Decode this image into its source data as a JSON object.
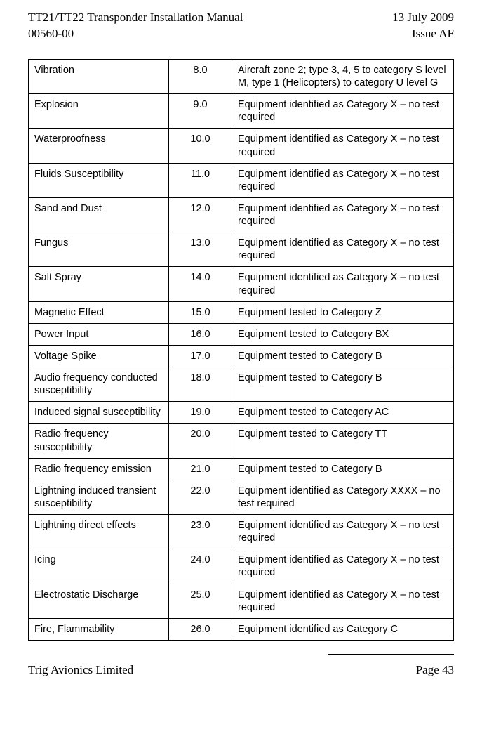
{
  "header": {
    "title_line1": "TT21/TT22 Transponder Installation Manual",
    "title_line2": "00560-00",
    "date": "13 July 2009",
    "issue": "Issue AF"
  },
  "table": {
    "rows": [
      {
        "condition": "Vibration",
        "section": "8.0",
        "description": "Aircraft zone 2; type 3, 4, 5 to category S level M, type 1 (Helicopters) to category U level G"
      },
      {
        "condition": "Explosion",
        "section": "9.0",
        "description": "Equipment identified as Category X – no test required"
      },
      {
        "condition": "Waterproofness",
        "section": "10.0",
        "description": "Equipment identified as Category X – no test required"
      },
      {
        "condition": "Fluids Susceptibility",
        "section": "11.0",
        "description": "Equipment identified as Category X – no test required"
      },
      {
        "condition": "Sand and Dust",
        "section": "12.0",
        "description": "Equipment identified as Category X – no test required"
      },
      {
        "condition": "Fungus",
        "section": "13.0",
        "description": "Equipment identified as Category X – no test required"
      },
      {
        "condition": "Salt Spray",
        "section": "14.0",
        "description": "Equipment identified as Category X – no test required"
      },
      {
        "condition": "Magnetic Effect",
        "section": "15.0",
        "description": "Equipment tested to Category Z"
      },
      {
        "condition": "Power Input",
        "section": "16.0",
        "description": "Equipment tested to Category BX"
      },
      {
        "condition": "Voltage Spike",
        "section": "17.0",
        "description": "Equipment tested to Category B"
      },
      {
        "condition": "Audio frequency conducted susceptibility",
        "section": "18.0",
        "description": "Equipment tested to Category B"
      },
      {
        "condition": "Induced signal susceptibility",
        "section": "19.0",
        "description": "Equipment tested to Category AC"
      },
      {
        "condition": "Radio frequency susceptibility",
        "section": "20.0",
        "description": "Equipment tested to Category TT"
      },
      {
        "condition": "Radio frequency emission",
        "section": "21.0",
        "description": "Equipment tested to Category B"
      },
      {
        "condition": "Lightning induced transient susceptibility",
        "section": "22.0",
        "description": "Equipment identified as Category XXXX – no test required"
      },
      {
        "condition": "Lightning direct effects",
        "section": "23.0",
        "description": "Equipment identified as Category X – no test required"
      },
      {
        "condition": "Icing",
        "section": "24.0",
        "description": "Equipment identified as Category X – no test required"
      },
      {
        "condition": "Electrostatic Discharge",
        "section": "25.0",
        "description": "Equipment identified as Category X – no test required"
      },
      {
        "condition": "Fire, Flammability",
        "section": "26.0",
        "description": "Equipment identified as Category C"
      }
    ]
  },
  "footer": {
    "company": "Trig Avionics Limited",
    "page": "Page 43"
  }
}
